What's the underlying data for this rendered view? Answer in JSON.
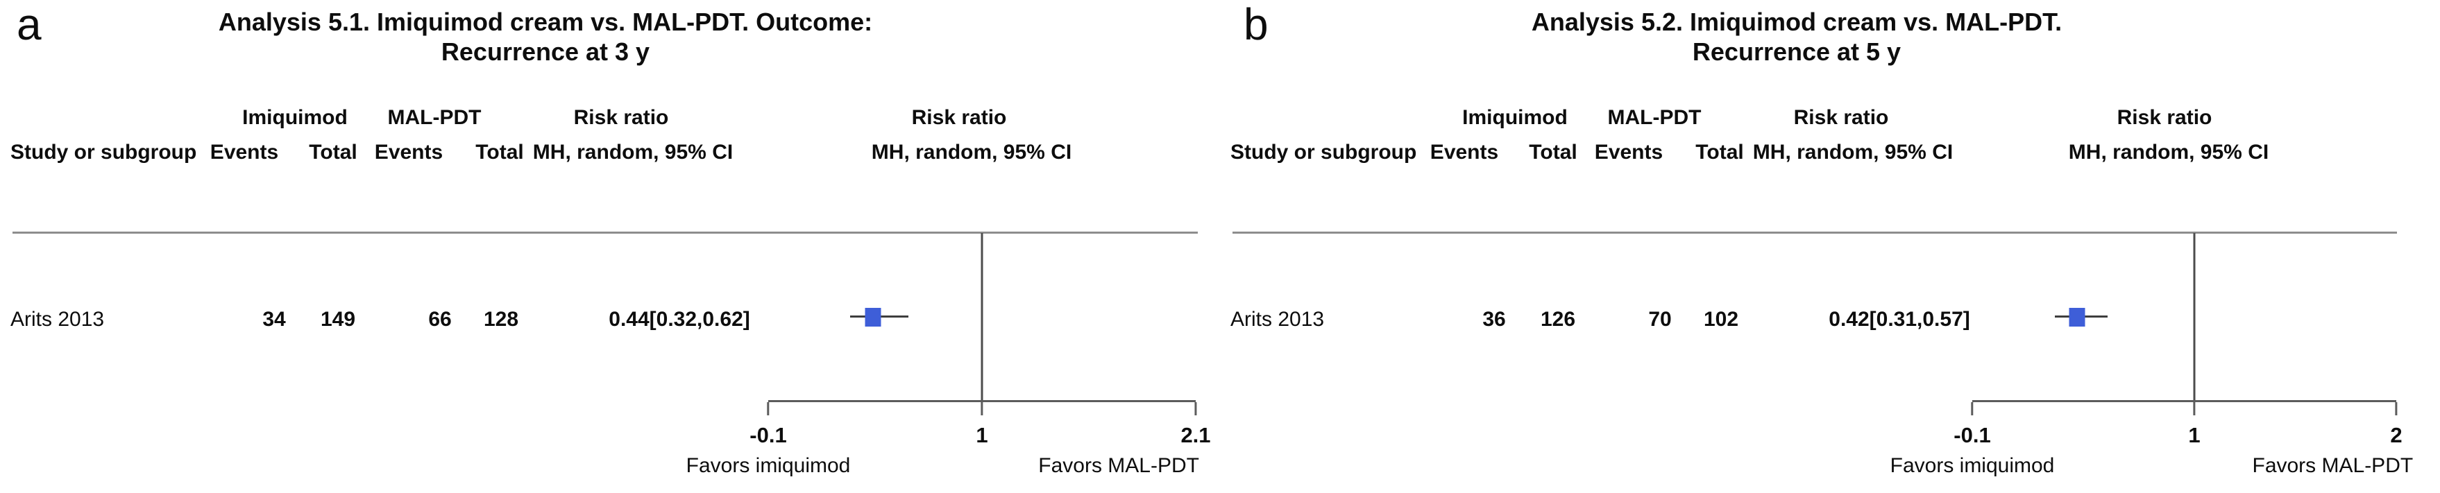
{
  "figure": {
    "description_left_panel": "a",
    "description_right_panel": "b"
  },
  "panels": [
    {
      "label": "a",
      "title_line1": "Analysis 5.1. Imiquimod cream vs. MAL-PDT. Outcome:",
      "title_line2": "Recurrence at 3 y",
      "headers": {
        "study": "Study or subgroup",
        "group1": "Imiquimod",
        "group2": "MAL-PDT",
        "effect": "Risk ratio",
        "events1": "Events",
        "total1": "Total",
        "events2": "Events",
        "total2": "Total",
        "effect_sub": "MH, random, 95% CI",
        "plot_effect": "Risk ratio",
        "plot_sub": "MH, random, 95% CI"
      },
      "row": {
        "study": "Arits 2013",
        "events1": "34",
        "total1": "149",
        "events2": "66",
        "total2": "128",
        "rr_ci": "0.44[0.32,0.62]"
      },
      "plot": {
        "axis_min": -0.1,
        "axis_max": 2.1,
        "ref_value": 1,
        "estimate": 0.44,
        "ci_low": 0.32,
        "ci_high": 0.62,
        "ticks": [
          {
            "value": -0.1,
            "label": "-0.1"
          },
          {
            "value": 1,
            "label": "1"
          },
          {
            "value": 2.1,
            "label": "2.1"
          }
        ],
        "favors_left": "Favors imiquimod",
        "favors_right": "Favors MAL-PDT",
        "marker_color": "#3e5ed8"
      }
    },
    {
      "label": "b",
      "title_line1": "Analysis 5.2. Imiquimod cream vs. MAL-PDT.",
      "title_line2": "Recurrence at 5 y",
      "headers": {
        "study": "Study or subgroup",
        "group1": "Imiquimod",
        "group2": "MAL-PDT",
        "effect": "Risk ratio",
        "events1": "Events",
        "total1": "Total",
        "events2": "Events",
        "total2": "Total",
        "effect_sub": "MH, random, 95% CI",
        "plot_effect": "Risk ratio",
        "plot_sub": "MH, random, 95% CI"
      },
      "row": {
        "study": "Arits 2013",
        "events1": "36",
        "total1": "126",
        "events2": "70",
        "total2": "102",
        "rr_ci": "0.42[0.31,0.57]"
      },
      "plot": {
        "axis_min": -0.1,
        "axis_max": 2,
        "ref_value": 1,
        "estimate": 0.42,
        "ci_low": 0.31,
        "ci_high": 0.57,
        "ticks": [
          {
            "value": -0.1,
            "label": "-0.1"
          },
          {
            "value": 1,
            "label": "1"
          },
          {
            "value": 2,
            "label": "2"
          }
        ],
        "favors_left": "Favors imiquimod",
        "favors_right": "Favors MAL-PDT",
        "marker_color": "#3e5ed8"
      }
    }
  ],
  "chart_data": [
    {
      "type": "scatter",
      "subtype": "forest_plot",
      "title": "Analysis 5.1. Imiquimod cream vs. MAL-PDT. Outcome: Recurrence at 3 y",
      "effect_measure": "Risk ratio, MH, random, 95% CI",
      "columns": [
        "Study or subgroup",
        "Imiquimod Events",
        "Imiquimod Total",
        "MAL-PDT Events",
        "MAL-PDT Total",
        "Risk ratio MH, random, 95% CI"
      ],
      "studies": [
        {
          "study": "Arits 2013",
          "imiquimod_events": 34,
          "imiquimod_total": 149,
          "malpdt_events": 66,
          "malpdt_total": 128,
          "risk_ratio": 0.44,
          "ci_low": 0.32,
          "ci_high": 0.62
        }
      ],
      "x_axis": {
        "min": -0.1,
        "max": 2.1,
        "ticks": [
          -0.1,
          1,
          2.1
        ],
        "reference_line": 1
      },
      "annotations": {
        "left_of_1": "Favors imiquimod",
        "right_of_1": "Favors MAL-PDT"
      },
      "legend": "none",
      "grid": false
    },
    {
      "type": "scatter",
      "subtype": "forest_plot",
      "title": "Analysis 5.2. Imiquimod cream vs. MAL-PDT. Recurrence at 5 y",
      "effect_measure": "Risk ratio, MH, random, 95% CI",
      "columns": [
        "Study or subgroup",
        "Imiquimod Events",
        "Imiquimod Total",
        "MAL-PDT Events",
        "MAL-PDT Total",
        "Risk ratio MH, random, 95% CI"
      ],
      "studies": [
        {
          "study": "Arits 2013",
          "imiquimod_events": 36,
          "imiquimod_total": 126,
          "malpdt_events": 70,
          "malpdt_total": 102,
          "risk_ratio": 0.42,
          "ci_low": 0.31,
          "ci_high": 0.57
        }
      ],
      "x_axis": {
        "min": -0.1,
        "max": 2,
        "ticks": [
          -0.1,
          1,
          2
        ],
        "reference_line": 1
      },
      "annotations": {
        "left_of_1": "Favors imiquimod",
        "right_of_1": "Favors MAL-PDT"
      },
      "legend": "none",
      "grid": false
    }
  ]
}
